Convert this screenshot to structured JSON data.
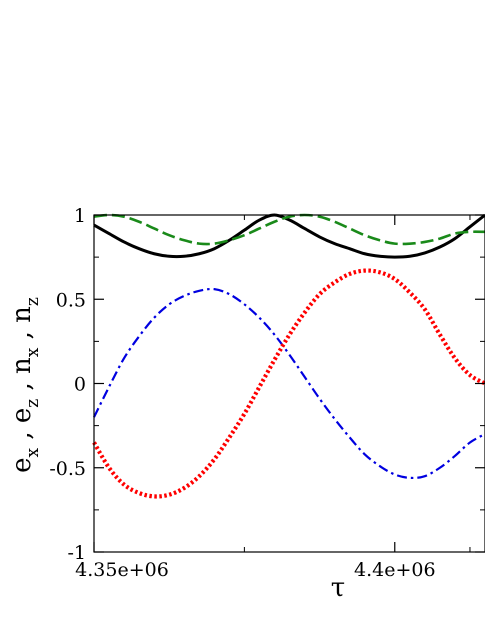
{
  "chart_data": {
    "type": "line",
    "title": "",
    "xlabel": "τ",
    "ylabel_parts": [
      {
        "base": "e",
        "sub": "x",
        "sep": " , "
      },
      {
        "base": "e",
        "sub": "z",
        "sep": " , "
      },
      {
        "base": "n",
        "sub": "x",
        "sep": " , "
      },
      {
        "base": "n",
        "sub": "z",
        "sep": ""
      }
    ],
    "xlim": [
      4350000,
      4415000
    ],
    "ylim": [
      -1,
      1
    ],
    "x_ticks": [
      {
        "value": 4350000,
        "label": "4.35e+06"
      },
      {
        "value": 4400000,
        "label": "4.4e+06"
      }
    ],
    "x_minor_ticks": [
      4375000,
      4412500
    ],
    "y_ticks": [
      {
        "value": 1,
        "label": "1"
      },
      {
        "value": 0.5,
        "label": "0.5"
      },
      {
        "value": 0,
        "label": "0"
      },
      {
        "value": -0.5,
        "label": "-0.5"
      },
      {
        "value": -1,
        "label": "-1"
      }
    ],
    "y_minor_ticks": [
      0.75,
      0.25,
      -0.25,
      -0.75
    ],
    "grid": false,
    "legend": "none",
    "series": [
      {
        "style": "solid",
        "color": "#000000",
        "x": [
          4350000,
          4352500,
          4355000,
          4357500,
          4360000,
          4362500,
          4365000,
          4367500,
          4370000,
          4372500,
          4375000,
          4377500,
          4380000,
          4382500,
          4385000,
          4387500,
          4390000,
          4392500,
          4395000,
          4397500,
          4400000,
          4402500,
          4405000,
          4407500,
          4410000,
          4412500,
          4415000
        ],
        "values": [
          0.94,
          0.89,
          0.84,
          0.8,
          0.77,
          0.755,
          0.755,
          0.77,
          0.8,
          0.85,
          0.91,
          0.97,
          1.0,
          0.97,
          0.92,
          0.87,
          0.83,
          0.8,
          0.77,
          0.755,
          0.75,
          0.755,
          0.775,
          0.81,
          0.86,
          0.93,
          1.0
        ]
      },
      {
        "style": "dashed",
        "color": "#1a8a1a",
        "x": [
          4350000,
          4352500,
          4355000,
          4357500,
          4360000,
          4362500,
          4365000,
          4367500,
          4370000,
          4372500,
          4375000,
          4377500,
          4380000,
          4382500,
          4385000,
          4387500,
          4390000,
          4392500,
          4395000,
          4397500,
          4400000,
          4402500,
          4405000,
          4407500,
          4410000,
          4412500,
          4415000
        ],
        "values": [
          0.99,
          1.0,
          0.99,
          0.96,
          0.92,
          0.88,
          0.85,
          0.83,
          0.83,
          0.85,
          0.88,
          0.92,
          0.96,
          0.99,
          1.0,
          0.99,
          0.96,
          0.92,
          0.88,
          0.85,
          0.83,
          0.83,
          0.84,
          0.86,
          0.89,
          0.9,
          0.9
        ]
      },
      {
        "style": "dashdot",
        "color": "#0000e0",
        "x": [
          4350000,
          4352500,
          4355000,
          4357500,
          4360000,
          4362500,
          4365000,
          4367500,
          4370000,
          4372500,
          4375000,
          4377500,
          4380000,
          4382500,
          4385000,
          4387500,
          4390000,
          4392500,
          4395000,
          4397500,
          4400000,
          4402500,
          4405000,
          4407500,
          4410000,
          4412500,
          4415000
        ],
        "values": [
          -0.2,
          -0.02,
          0.15,
          0.28,
          0.39,
          0.47,
          0.52,
          0.55,
          0.56,
          0.53,
          0.47,
          0.39,
          0.29,
          0.17,
          0.04,
          -0.09,
          -0.21,
          -0.32,
          -0.42,
          -0.49,
          -0.54,
          -0.56,
          -0.55,
          -0.5,
          -0.43,
          -0.35,
          -0.3
        ]
      },
      {
        "style": "dotted",
        "color": "#ff0000",
        "x": [
          4350000,
          4352500,
          4355000,
          4357500,
          4360000,
          4362500,
          4365000,
          4367500,
          4370000,
          4372500,
          4375000,
          4377500,
          4380000,
          4382500,
          4385000,
          4387500,
          4390000,
          4392500,
          4395000,
          4397500,
          4400000,
          4402500,
          4405000,
          4407500,
          4410000,
          4412500,
          4415000
        ],
        "values": [
          -0.35,
          -0.5,
          -0.6,
          -0.65,
          -0.67,
          -0.66,
          -0.62,
          -0.55,
          -0.45,
          -0.32,
          -0.18,
          -0.02,
          0.14,
          0.29,
          0.42,
          0.53,
          0.6,
          0.65,
          0.67,
          0.66,
          0.62,
          0.54,
          0.44,
          0.29,
          0.15,
          0.05,
          0.0
        ]
      }
    ]
  }
}
